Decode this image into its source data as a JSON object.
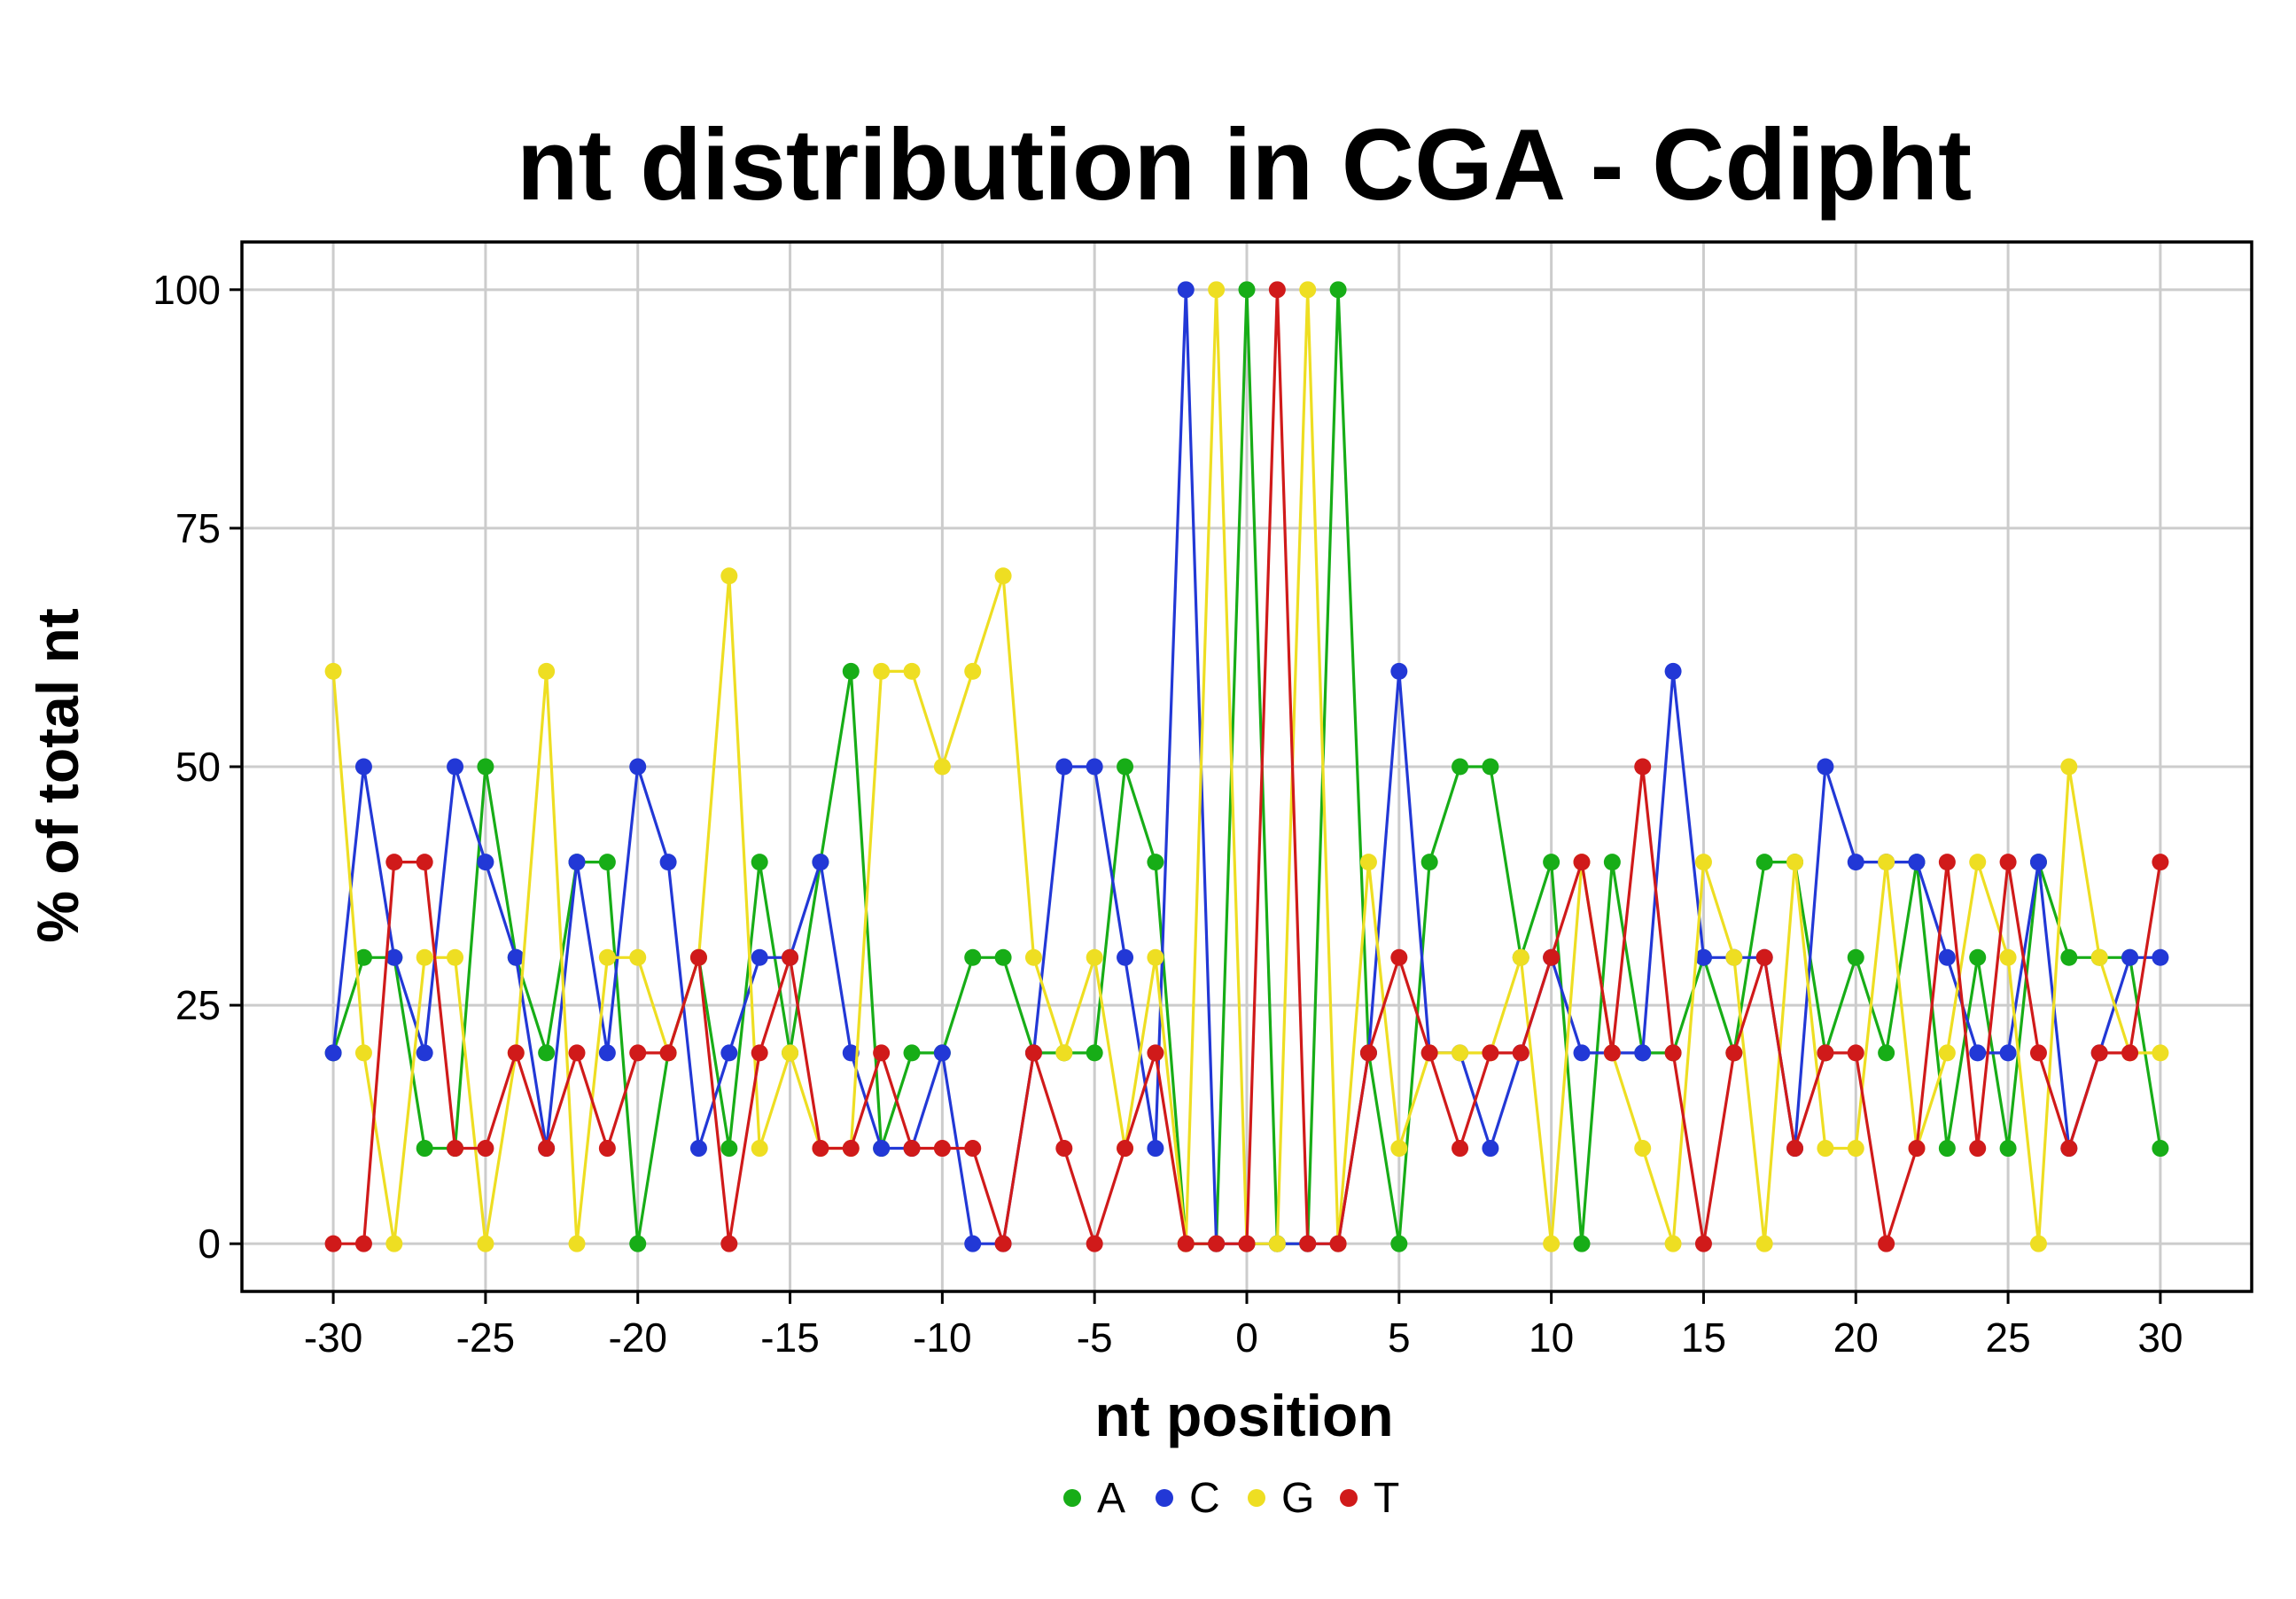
{
  "chart_data": {
    "type": "line",
    "title": "nt distribution in CGA - Cdipht",
    "xlabel": "nt position",
    "ylabel": "% of total nt",
    "xlim": [
      -33,
      33
    ],
    "ylim": [
      -5,
      105
    ],
    "x_ticks": [
      -30,
      -25,
      -20,
      -15,
      -10,
      -5,
      0,
      5,
      10,
      15,
      20,
      25,
      30
    ],
    "y_ticks": [
      0,
      25,
      50,
      75,
      100
    ],
    "grid": true,
    "legend_position": "bottom",
    "x": [
      -30,
      -29,
      -28,
      -27,
      -26,
      -25,
      -24,
      -23,
      -22,
      -21,
      -20,
      -19,
      -18,
      -17,
      -16,
      -15,
      -14,
      -13,
      -12,
      -11,
      -10,
      -9,
      -8,
      -7,
      -6,
      -5,
      -4,
      -3,
      -2,
      -1,
      0,
      1,
      2,
      3,
      4,
      5,
      6,
      7,
      8,
      9,
      10,
      11,
      12,
      13,
      14,
      15,
      16,
      17,
      18,
      19,
      20,
      21,
      22,
      23,
      24,
      25,
      26,
      27,
      28,
      29,
      30
    ],
    "series": [
      {
        "name": "A",
        "color": "#17ad17",
        "values": [
          20,
          30,
          30,
          10,
          10,
          50,
          30,
          20,
          40,
          40,
          0,
          20,
          30,
          10,
          40,
          20,
          40,
          60,
          10,
          20,
          20,
          30,
          30,
          20,
          20,
          20,
          50,
          40,
          0,
          0,
          100,
          0,
          0,
          100,
          20,
          0,
          40,
          50,
          50,
          30,
          40,
          0,
          40,
          20,
          20,
          30,
          20,
          40,
          40,
          20,
          30,
          20,
          40,
          10,
          30,
          10,
          40,
          30,
          30,
          30,
          10
        ]
      },
      {
        "name": "C",
        "color": "#2238d6",
        "values": [
          20,
          50,
          30,
          20,
          50,
          40,
          30,
          10,
          40,
          20,
          50,
          40,
          10,
          20,
          30,
          30,
          40,
          20,
          10,
          10,
          20,
          0,
          0,
          20,
          50,
          50,
          30,
          10,
          100,
          0,
          0,
          0,
          0,
          0,
          20,
          60,
          20,
          20,
          10,
          20,
          30,
          20,
          20,
          20,
          60,
          30,
          30,
          30,
          10,
          50,
          40,
          40,
          40,
          30,
          20,
          20,
          40,
          10,
          20,
          30,
          30
        ]
      },
      {
        "name": "G",
        "color": "#eede22",
        "values": [
          60,
          20,
          0,
          30,
          30,
          0,
          20,
          60,
          0,
          30,
          30,
          20,
          30,
          70,
          10,
          20,
          10,
          10,
          60,
          60,
          50,
          60,
          70,
          30,
          20,
          30,
          10,
          30,
          0,
          100,
          0,
          0,
          100,
          0,
          40,
          10,
          20,
          20,
          20,
          30,
          0,
          40,
          20,
          10,
          0,
          40,
          30,
          0,
          40,
          10,
          10,
          40,
          10,
          20,
          40,
          30,
          0,
          50,
          30,
          20,
          20
        ]
      },
      {
        "name": "T",
        "color": "#d01a1a",
        "values": [
          0,
          0,
          40,
          40,
          10,
          10,
          20,
          10,
          20,
          10,
          20,
          20,
          30,
          0,
          20,
          30,
          10,
          10,
          20,
          10,
          10,
          10,
          0,
          20,
          10,
          0,
          10,
          20,
          0,
          0,
          0,
          100,
          0,
          0,
          20,
          30,
          20,
          10,
          20,
          20,
          30,
          40,
          20,
          50,
          20,
          0,
          20,
          30,
          10,
          20,
          20,
          0,
          10,
          40,
          10,
          40,
          20,
          10,
          20,
          20,
          40
        ]
      }
    ]
  }
}
